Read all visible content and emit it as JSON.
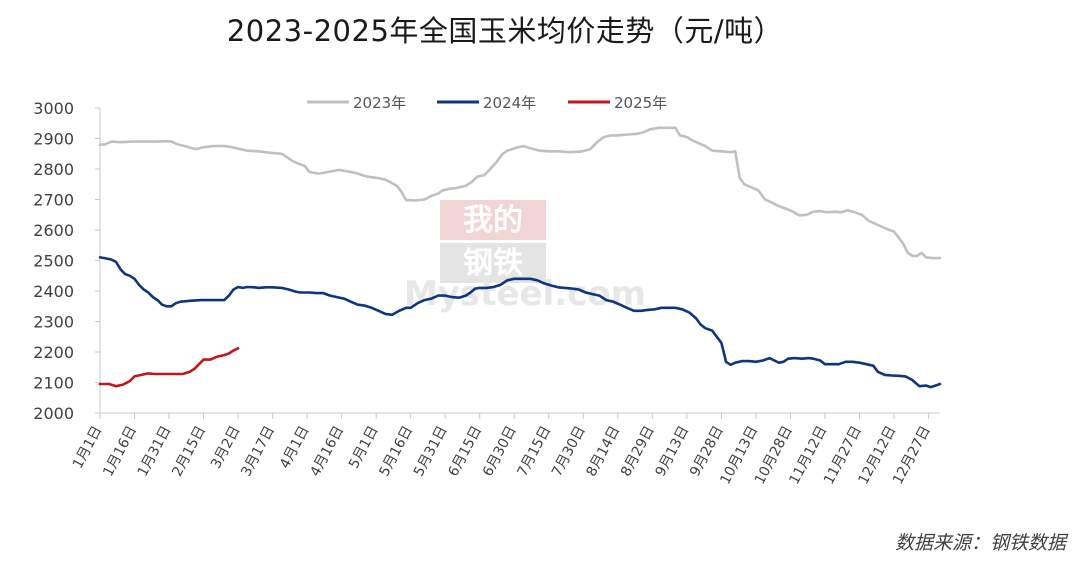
{
  "page": {
    "title": "2023-2025年全国玉米均价走势（元/吨）",
    "source": "数据来源：钢铁数据"
  },
  "watermark": {
    "line1": "我的",
    "line2": "钢铁",
    "brand": "Mysteel.com"
  },
  "chart_data": {
    "type": "line",
    "title": "2023-2025年全国玉米均价走势（元/吨）",
    "ylim": [
      2000,
      3000
    ],
    "yticks": [
      2000,
      2100,
      2200,
      2300,
      2400,
      2500,
      2600,
      2700,
      2800,
      2900,
      3000
    ],
    "xlim": [
      1,
      366
    ],
    "xticks": [
      {
        "day": 1,
        "label": "1月1日"
      },
      {
        "day": 16,
        "label": "1月16日"
      },
      {
        "day": 31,
        "label": "1月31日"
      },
      {
        "day": 46,
        "label": "2月15日"
      },
      {
        "day": 61,
        "label": "3月2日"
      },
      {
        "day": 76,
        "label": "3月17日"
      },
      {
        "day": 91,
        "label": "4月1日"
      },
      {
        "day": 106,
        "label": "4月16日"
      },
      {
        "day": 121,
        "label": "5月1日"
      },
      {
        "day": 136,
        "label": "5月16日"
      },
      {
        "day": 151,
        "label": "5月31日"
      },
      {
        "day": 166,
        "label": "6月15日"
      },
      {
        "day": 181,
        "label": "6月30日"
      },
      {
        "day": 196,
        "label": "7月15日"
      },
      {
        "day": 211,
        "label": "7月30日"
      },
      {
        "day": 226,
        "label": "8月14日"
      },
      {
        "day": 241,
        "label": "8月29日"
      },
      {
        "day": 256,
        "label": "9月13日"
      },
      {
        "day": 271,
        "label": "9月28日"
      },
      {
        "day": 286,
        "label": "10月13日"
      },
      {
        "day": 301,
        "label": "10月28日"
      },
      {
        "day": 316,
        "label": "11月12日"
      },
      {
        "day": 331,
        "label": "11月27日"
      },
      {
        "day": 346,
        "label": "12月12日"
      },
      {
        "day": 361,
        "label": "12月27日"
      }
    ],
    "legend_position": "top-center",
    "grid": false,
    "series": [
      {
        "name": "2023年",
        "color": "#c0c0c0",
        "points": [
          [
            1,
            2880
          ],
          [
            3,
            2880
          ],
          [
            6,
            2890
          ],
          [
            10,
            2888
          ],
          [
            15,
            2890
          ],
          [
            20,
            2890
          ],
          [
            25,
            2890
          ],
          [
            30,
            2891
          ],
          [
            32,
            2890
          ],
          [
            35,
            2880
          ],
          [
            38,
            2875
          ],
          [
            40,
            2870
          ],
          [
            43,
            2865
          ],
          [
            45,
            2870
          ],
          [
            50,
            2875
          ],
          [
            55,
            2875
          ],
          [
            58,
            2872
          ],
          [
            62,
            2865
          ],
          [
            65,
            2860
          ],
          [
            70,
            2858
          ],
          [
            75,
            2853
          ],
          [
            80,
            2850
          ],
          [
            82,
            2840
          ],
          [
            85,
            2825
          ],
          [
            88,
            2815
          ],
          [
            90,
            2810
          ],
          [
            92,
            2790
          ],
          [
            96,
            2785
          ],
          [
            100,
            2790
          ],
          [
            105,
            2797
          ],
          [
            110,
            2790
          ],
          [
            113,
            2785
          ],
          [
            117,
            2775
          ],
          [
            122,
            2770
          ],
          [
            125,
            2765
          ],
          [
            127,
            2757
          ],
          [
            130,
            2745
          ],
          [
            132,
            2725
          ],
          [
            134,
            2698
          ],
          [
            138,
            2697
          ],
          [
            142,
            2700
          ],
          [
            145,
            2712
          ],
          [
            148,
            2720
          ],
          [
            150,
            2730
          ],
          [
            153,
            2735
          ],
          [
            156,
            2738
          ],
          [
            160,
            2745
          ],
          [
            163,
            2760
          ],
          [
            165,
            2775
          ],
          [
            168,
            2780
          ],
          [
            170,
            2795
          ],
          [
            173,
            2820
          ],
          [
            176,
            2850
          ],
          [
            178,
            2860
          ],
          [
            182,
            2870
          ],
          [
            185,
            2875
          ],
          [
            188,
            2868
          ],
          [
            192,
            2860
          ],
          [
            196,
            2858
          ],
          [
            200,
            2858
          ],
          [
            205,
            2855
          ],
          [
            210,
            2857
          ],
          [
            214,
            2865
          ],
          [
            217,
            2888
          ],
          [
            220,
            2905
          ],
          [
            223,
            2910
          ],
          [
            226,
            2910
          ],
          [
            230,
            2913
          ],
          [
            234,
            2915
          ],
          [
            237,
            2920
          ],
          [
            240,
            2930
          ],
          [
            244,
            2935
          ],
          [
            248,
            2935
          ],
          [
            251,
            2935
          ],
          [
            253,
            2910
          ],
          [
            256,
            2905
          ],
          [
            258,
            2895
          ],
          [
            261,
            2885
          ],
          [
            264,
            2875
          ],
          [
            267,
            2860
          ],
          [
            271,
            2858
          ],
          [
            275,
            2855
          ],
          [
            277,
            2858
          ],
          [
            279,
            2770
          ],
          [
            281,
            2750
          ],
          [
            284,
            2740
          ],
          [
            287,
            2730
          ],
          [
            290,
            2700
          ],
          [
            293,
            2690
          ],
          [
            296,
            2678
          ],
          [
            299,
            2670
          ],
          [
            302,
            2660
          ],
          [
            305,
            2648
          ],
          [
            308,
            2650
          ],
          [
            311,
            2660
          ],
          [
            314,
            2662
          ],
          [
            317,
            2658
          ],
          [
            320,
            2660
          ],
          [
            323,
            2658
          ],
          [
            326,
            2665
          ],
          [
            329,
            2658
          ],
          [
            332,
            2650
          ],
          [
            335,
            2630
          ],
          [
            338,
            2620
          ],
          [
            341,
            2610
          ],
          [
            344,
            2600
          ],
          [
            346,
            2595
          ],
          [
            348,
            2575
          ],
          [
            350,
            2555
          ],
          [
            352,
            2525
          ],
          [
            354,
            2515
          ],
          [
            356,
            2515
          ],
          [
            358,
            2525
          ],
          [
            360,
            2510
          ],
          [
            363,
            2508
          ],
          [
            366,
            2508
          ]
        ]
      },
      {
        "name": "2024年",
        "color": "#0d3580",
        "points": [
          [
            1,
            2510
          ],
          [
            3,
            2508
          ],
          [
            6,
            2503
          ],
          [
            8,
            2495
          ],
          [
            10,
            2470
          ],
          [
            12,
            2455
          ],
          [
            14,
            2450
          ],
          [
            16,
            2440
          ],
          [
            18,
            2420
          ],
          [
            20,
            2405
          ],
          [
            22,
            2395
          ],
          [
            24,
            2380
          ],
          [
            26,
            2370
          ],
          [
            28,
            2355
          ],
          [
            30,
            2350
          ],
          [
            32,
            2350
          ],
          [
            34,
            2360
          ],
          [
            36,
            2365
          ],
          [
            40,
            2368
          ],
          [
            45,
            2370
          ],
          [
            50,
            2370
          ],
          [
            55,
            2370
          ],
          [
            57,
            2385
          ],
          [
            59,
            2405
          ],
          [
            61,
            2413
          ],
          [
            63,
            2410
          ],
          [
            65,
            2413
          ],
          [
            68,
            2412
          ],
          [
            70,
            2410
          ],
          [
            73,
            2412
          ],
          [
            76,
            2412
          ],
          [
            80,
            2410
          ],
          [
            83,
            2405
          ],
          [
            86,
            2398
          ],
          [
            88,
            2395
          ],
          [
            92,
            2395
          ],
          [
            95,
            2393
          ],
          [
            98,
            2393
          ],
          [
            101,
            2385
          ],
          [
            104,
            2380
          ],
          [
            107,
            2375
          ],
          [
            110,
            2365
          ],
          [
            113,
            2355
          ],
          [
            116,
            2352
          ],
          [
            119,
            2345
          ],
          [
            122,
            2335
          ],
          [
            125,
            2325
          ],
          [
            128,
            2322
          ],
          [
            131,
            2335
          ],
          [
            134,
            2345
          ],
          [
            136,
            2345
          ],
          [
            139,
            2360
          ],
          [
            142,
            2370
          ],
          [
            145,
            2375
          ],
          [
            148,
            2385
          ],
          [
            151,
            2385
          ],
          [
            154,
            2380
          ],
          [
            157,
            2378
          ],
          [
            160,
            2385
          ],
          [
            162,
            2395
          ],
          [
            164,
            2408
          ],
          [
            166,
            2410
          ],
          [
            169,
            2410
          ],
          [
            172,
            2413
          ],
          [
            175,
            2420
          ],
          [
            178,
            2435
          ],
          [
            181,
            2440
          ],
          [
            184,
            2440
          ],
          [
            188,
            2440
          ],
          [
            191,
            2435
          ],
          [
            194,
            2425
          ],
          [
            197,
            2418
          ],
          [
            200,
            2412
          ],
          [
            203,
            2410
          ],
          [
            206,
            2408
          ],
          [
            209,
            2405
          ],
          [
            212,
            2395
          ],
          [
            215,
            2390
          ],
          [
            218,
            2385
          ],
          [
            221,
            2370
          ],
          [
            224,
            2365
          ],
          [
            227,
            2355
          ],
          [
            230,
            2345
          ],
          [
            233,
            2335
          ],
          [
            236,
            2335
          ],
          [
            239,
            2338
          ],
          [
            242,
            2340
          ],
          [
            245,
            2345
          ],
          [
            248,
            2345
          ],
          [
            251,
            2345
          ],
          [
            254,
            2340
          ],
          [
            257,
            2330
          ],
          [
            260,
            2310
          ],
          [
            262,
            2290
          ],
          [
            264,
            2278
          ],
          [
            267,
            2270
          ],
          [
            269,
            2250
          ],
          [
            271,
            2230
          ],
          [
            272,
            2200
          ],
          [
            273,
            2168
          ],
          [
            275,
            2158
          ],
          [
            277,
            2165
          ],
          [
            280,
            2170
          ],
          [
            283,
            2170
          ],
          [
            286,
            2168
          ],
          [
            289,
            2172
          ],
          [
            292,
            2180
          ],
          [
            294,
            2172
          ],
          [
            296,
            2165
          ],
          [
            298,
            2168
          ],
          [
            300,
            2178
          ],
          [
            303,
            2180
          ],
          [
            306,
            2178
          ],
          [
            309,
            2180
          ],
          [
            311,
            2178
          ],
          [
            314,
            2172
          ],
          [
            316,
            2160
          ],
          [
            319,
            2160
          ],
          [
            322,
            2160
          ],
          [
            325,
            2168
          ],
          [
            328,
            2168
          ],
          [
            331,
            2165
          ],
          [
            334,
            2160
          ],
          [
            337,
            2155
          ],
          [
            339,
            2135
          ],
          [
            342,
            2125
          ],
          [
            345,
            2123
          ],
          [
            348,
            2122
          ],
          [
            351,
            2120
          ],
          [
            354,
            2108
          ],
          [
            357,
            2088
          ],
          [
            360,
            2090
          ],
          [
            362,
            2085
          ],
          [
            364,
            2090
          ],
          [
            366,
            2095
          ]
        ]
      },
      {
        "name": "2025年",
        "color": "#c0161c",
        "points": [
          [
            1,
            2095
          ],
          [
            5,
            2095
          ],
          [
            8,
            2088
          ],
          [
            11,
            2093
          ],
          [
            14,
            2105
          ],
          [
            16,
            2120
          ],
          [
            19,
            2125
          ],
          [
            22,
            2130
          ],
          [
            25,
            2128
          ],
          [
            29,
            2128
          ],
          [
            33,
            2128
          ],
          [
            37,
            2128
          ],
          [
            40,
            2135
          ],
          [
            42,
            2145
          ],
          [
            44,
            2160
          ],
          [
            46,
            2175
          ],
          [
            49,
            2175
          ],
          [
            52,
            2185
          ],
          [
            55,
            2190
          ],
          [
            57,
            2195
          ],
          [
            59,
            2205
          ],
          [
            61,
            2212
          ]
        ]
      }
    ]
  }
}
